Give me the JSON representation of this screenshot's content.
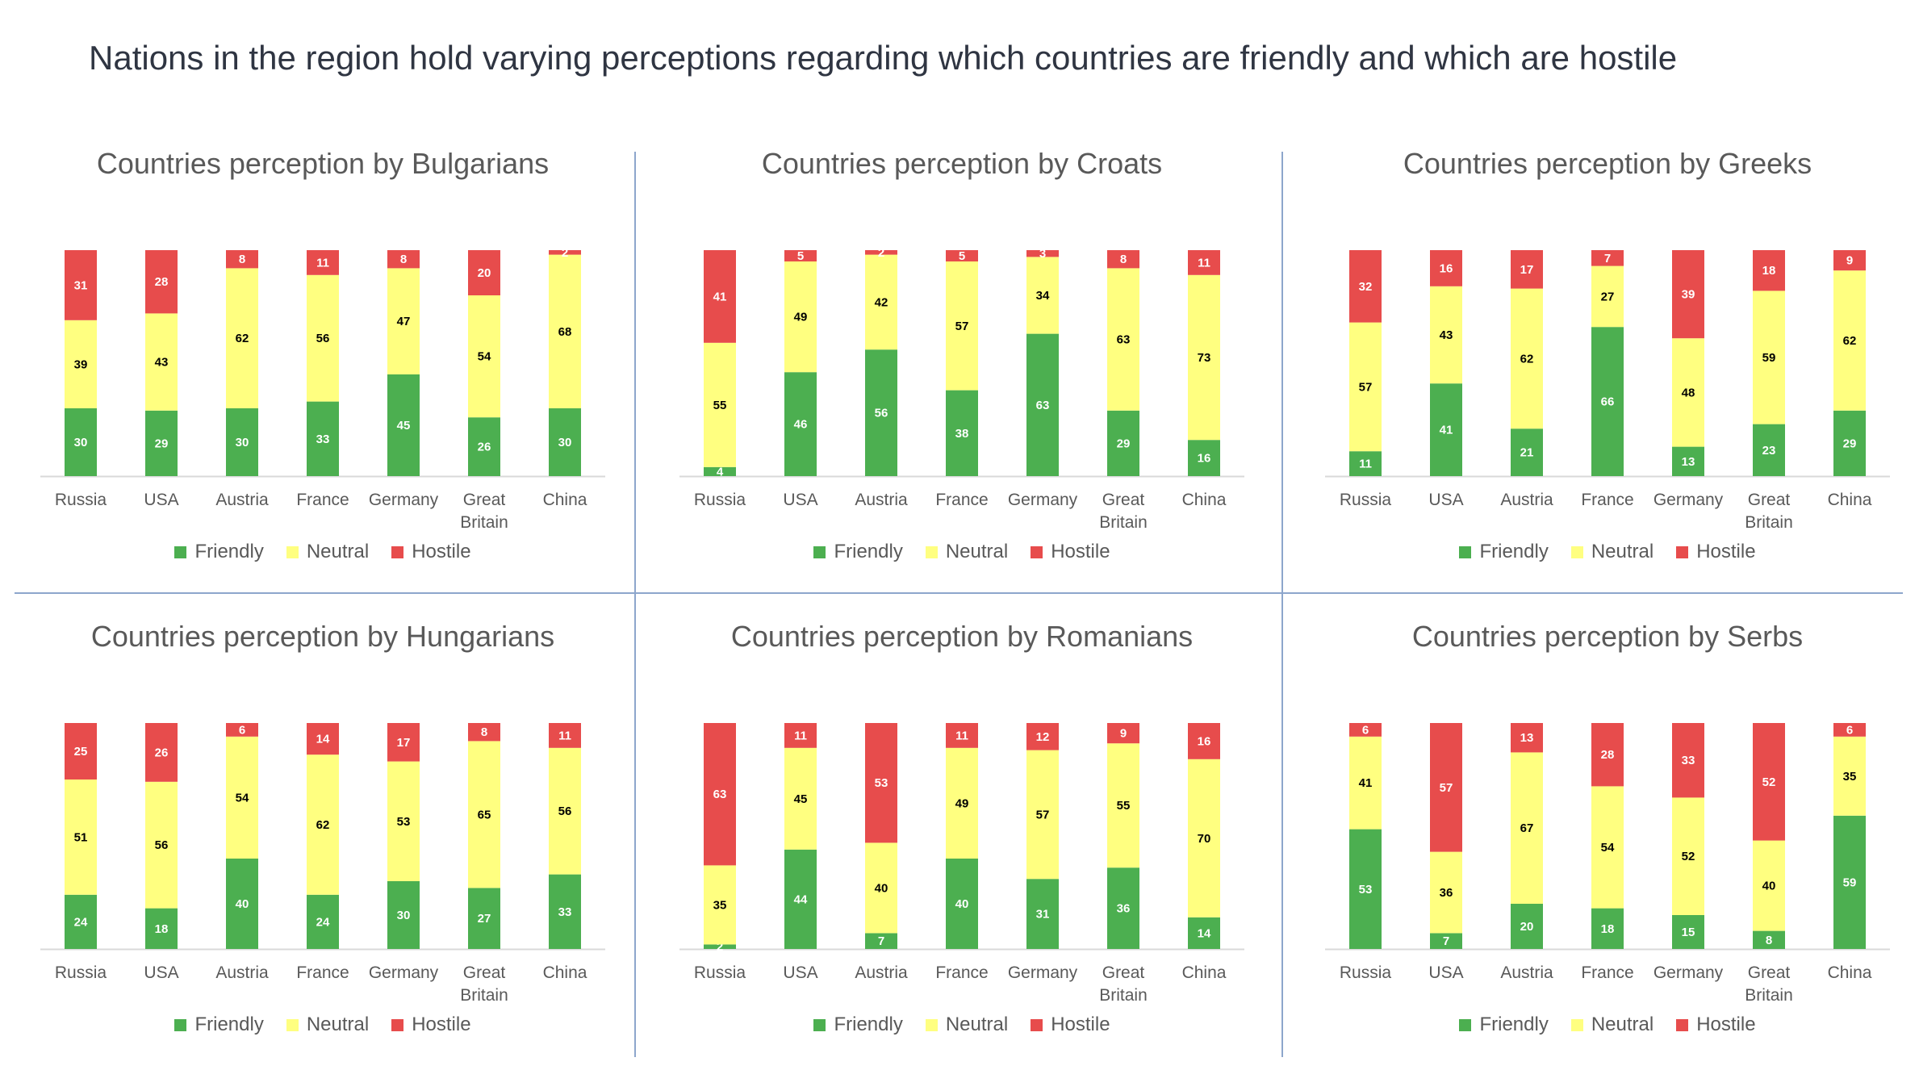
{
  "page": {
    "title": "Nations in the region hold varying perceptions regarding which countries are friendly and which are hostile"
  },
  "colors": {
    "friendly": "#4caf50",
    "neutral": "#ffff80",
    "hostile": "#e74c4c",
    "axis": "#d9d9d9",
    "divider": "#8da6cc"
  },
  "chart_data": [
    {
      "type": "bar",
      "title": "Countries perception by Bulgarians",
      "categories": [
        "Russia",
        "USA",
        "Austria",
        "France",
        "Germany",
        "Great Britain",
        "China"
      ],
      "series": [
        {
          "name": "Friendly",
          "values": [
            30,
            29,
            30,
            33,
            45,
            26,
            30
          ]
        },
        {
          "name": "Neutral",
          "values": [
            39,
            43,
            62,
            56,
            47,
            54,
            68
          ]
        },
        {
          "name": "Hostile",
          "values": [
            31,
            28,
            8,
            11,
            8,
            20,
            2
          ]
        }
      ],
      "stacked": true,
      "ylim": [
        0,
        100
      ],
      "legend": "bottom",
      "grid": false
    },
    {
      "type": "bar",
      "title": "Countries perception by Croats",
      "categories": [
        "Russia",
        "USA",
        "Austria",
        "France",
        "Germany",
        "Great Britain",
        "China"
      ],
      "series": [
        {
          "name": "Friendly",
          "values": [
            4,
            46,
            56,
            38,
            63,
            29,
            16
          ]
        },
        {
          "name": "Neutral",
          "values": [
            55,
            49,
            42,
            57,
            34,
            63,
            73
          ]
        },
        {
          "name": "Hostile",
          "values": [
            41,
            5,
            2,
            5,
            3,
            8,
            11
          ]
        }
      ],
      "stacked": true,
      "ylim": [
        0,
        100
      ],
      "legend": "bottom",
      "grid": false
    },
    {
      "type": "bar",
      "title": "Countries perception by Greeks",
      "categories": [
        "Russia",
        "USA",
        "Austria",
        "France",
        "Germany",
        "Great Britain",
        "China"
      ],
      "series": [
        {
          "name": "Friendly",
          "values": [
            11,
            41,
            21,
            66,
            13,
            23,
            29
          ]
        },
        {
          "name": "Neutral",
          "values": [
            57,
            43,
            62,
            27,
            48,
            59,
            62
          ]
        },
        {
          "name": "Hostile",
          "values": [
            32,
            16,
            17,
            7,
            39,
            18,
            9
          ]
        }
      ],
      "stacked": true,
      "ylim": [
        0,
        100
      ],
      "legend": "bottom",
      "grid": false
    },
    {
      "type": "bar",
      "title": "Countries perception by Hungarians",
      "categories": [
        "Russia",
        "USA",
        "Austria",
        "France",
        "Germany",
        "Great Britain",
        "China"
      ],
      "series": [
        {
          "name": "Friendly",
          "values": [
            24,
            18,
            40,
            24,
            30,
            27,
            33
          ]
        },
        {
          "name": "Neutral",
          "values": [
            51,
            56,
            54,
            62,
            53,
            65,
            56
          ]
        },
        {
          "name": "Hostile",
          "values": [
            25,
            26,
            6,
            14,
            17,
            8,
            11
          ]
        }
      ],
      "stacked": true,
      "ylim": [
        0,
        100
      ],
      "legend": "bottom",
      "grid": false
    },
    {
      "type": "bar",
      "title": "Countries perception by Romanians",
      "categories": [
        "Russia",
        "USA",
        "Austria",
        "France",
        "Germany",
        "Great Britain",
        "China"
      ],
      "series": [
        {
          "name": "Friendly",
          "values": [
            2,
            44,
            7,
            40,
            31,
            36,
            14
          ]
        },
        {
          "name": "Neutral",
          "values": [
            35,
            45,
            40,
            49,
            57,
            55,
            70
          ]
        },
        {
          "name": "Hostile",
          "values": [
            63,
            11,
            53,
            11,
            12,
            9,
            16
          ]
        }
      ],
      "stacked": true,
      "ylim": [
        0,
        100
      ],
      "legend": "bottom",
      "grid": false
    },
    {
      "type": "bar",
      "title": "Countries perception by Serbs",
      "categories": [
        "Russia",
        "USA",
        "Austria",
        "France",
        "Germany",
        "Great Britain",
        "China"
      ],
      "series": [
        {
          "name": "Friendly",
          "values": [
            53,
            7,
            20,
            18,
            15,
            8,
            59
          ]
        },
        {
          "name": "Neutral",
          "values": [
            41,
            36,
            67,
            54,
            52,
            40,
            35
          ]
        },
        {
          "name": "Hostile",
          "values": [
            6,
            57,
            13,
            28,
            33,
            52,
            6
          ]
        }
      ],
      "stacked": true,
      "ylim": [
        0,
        100
      ],
      "legend": "bottom",
      "grid": false
    }
  ]
}
